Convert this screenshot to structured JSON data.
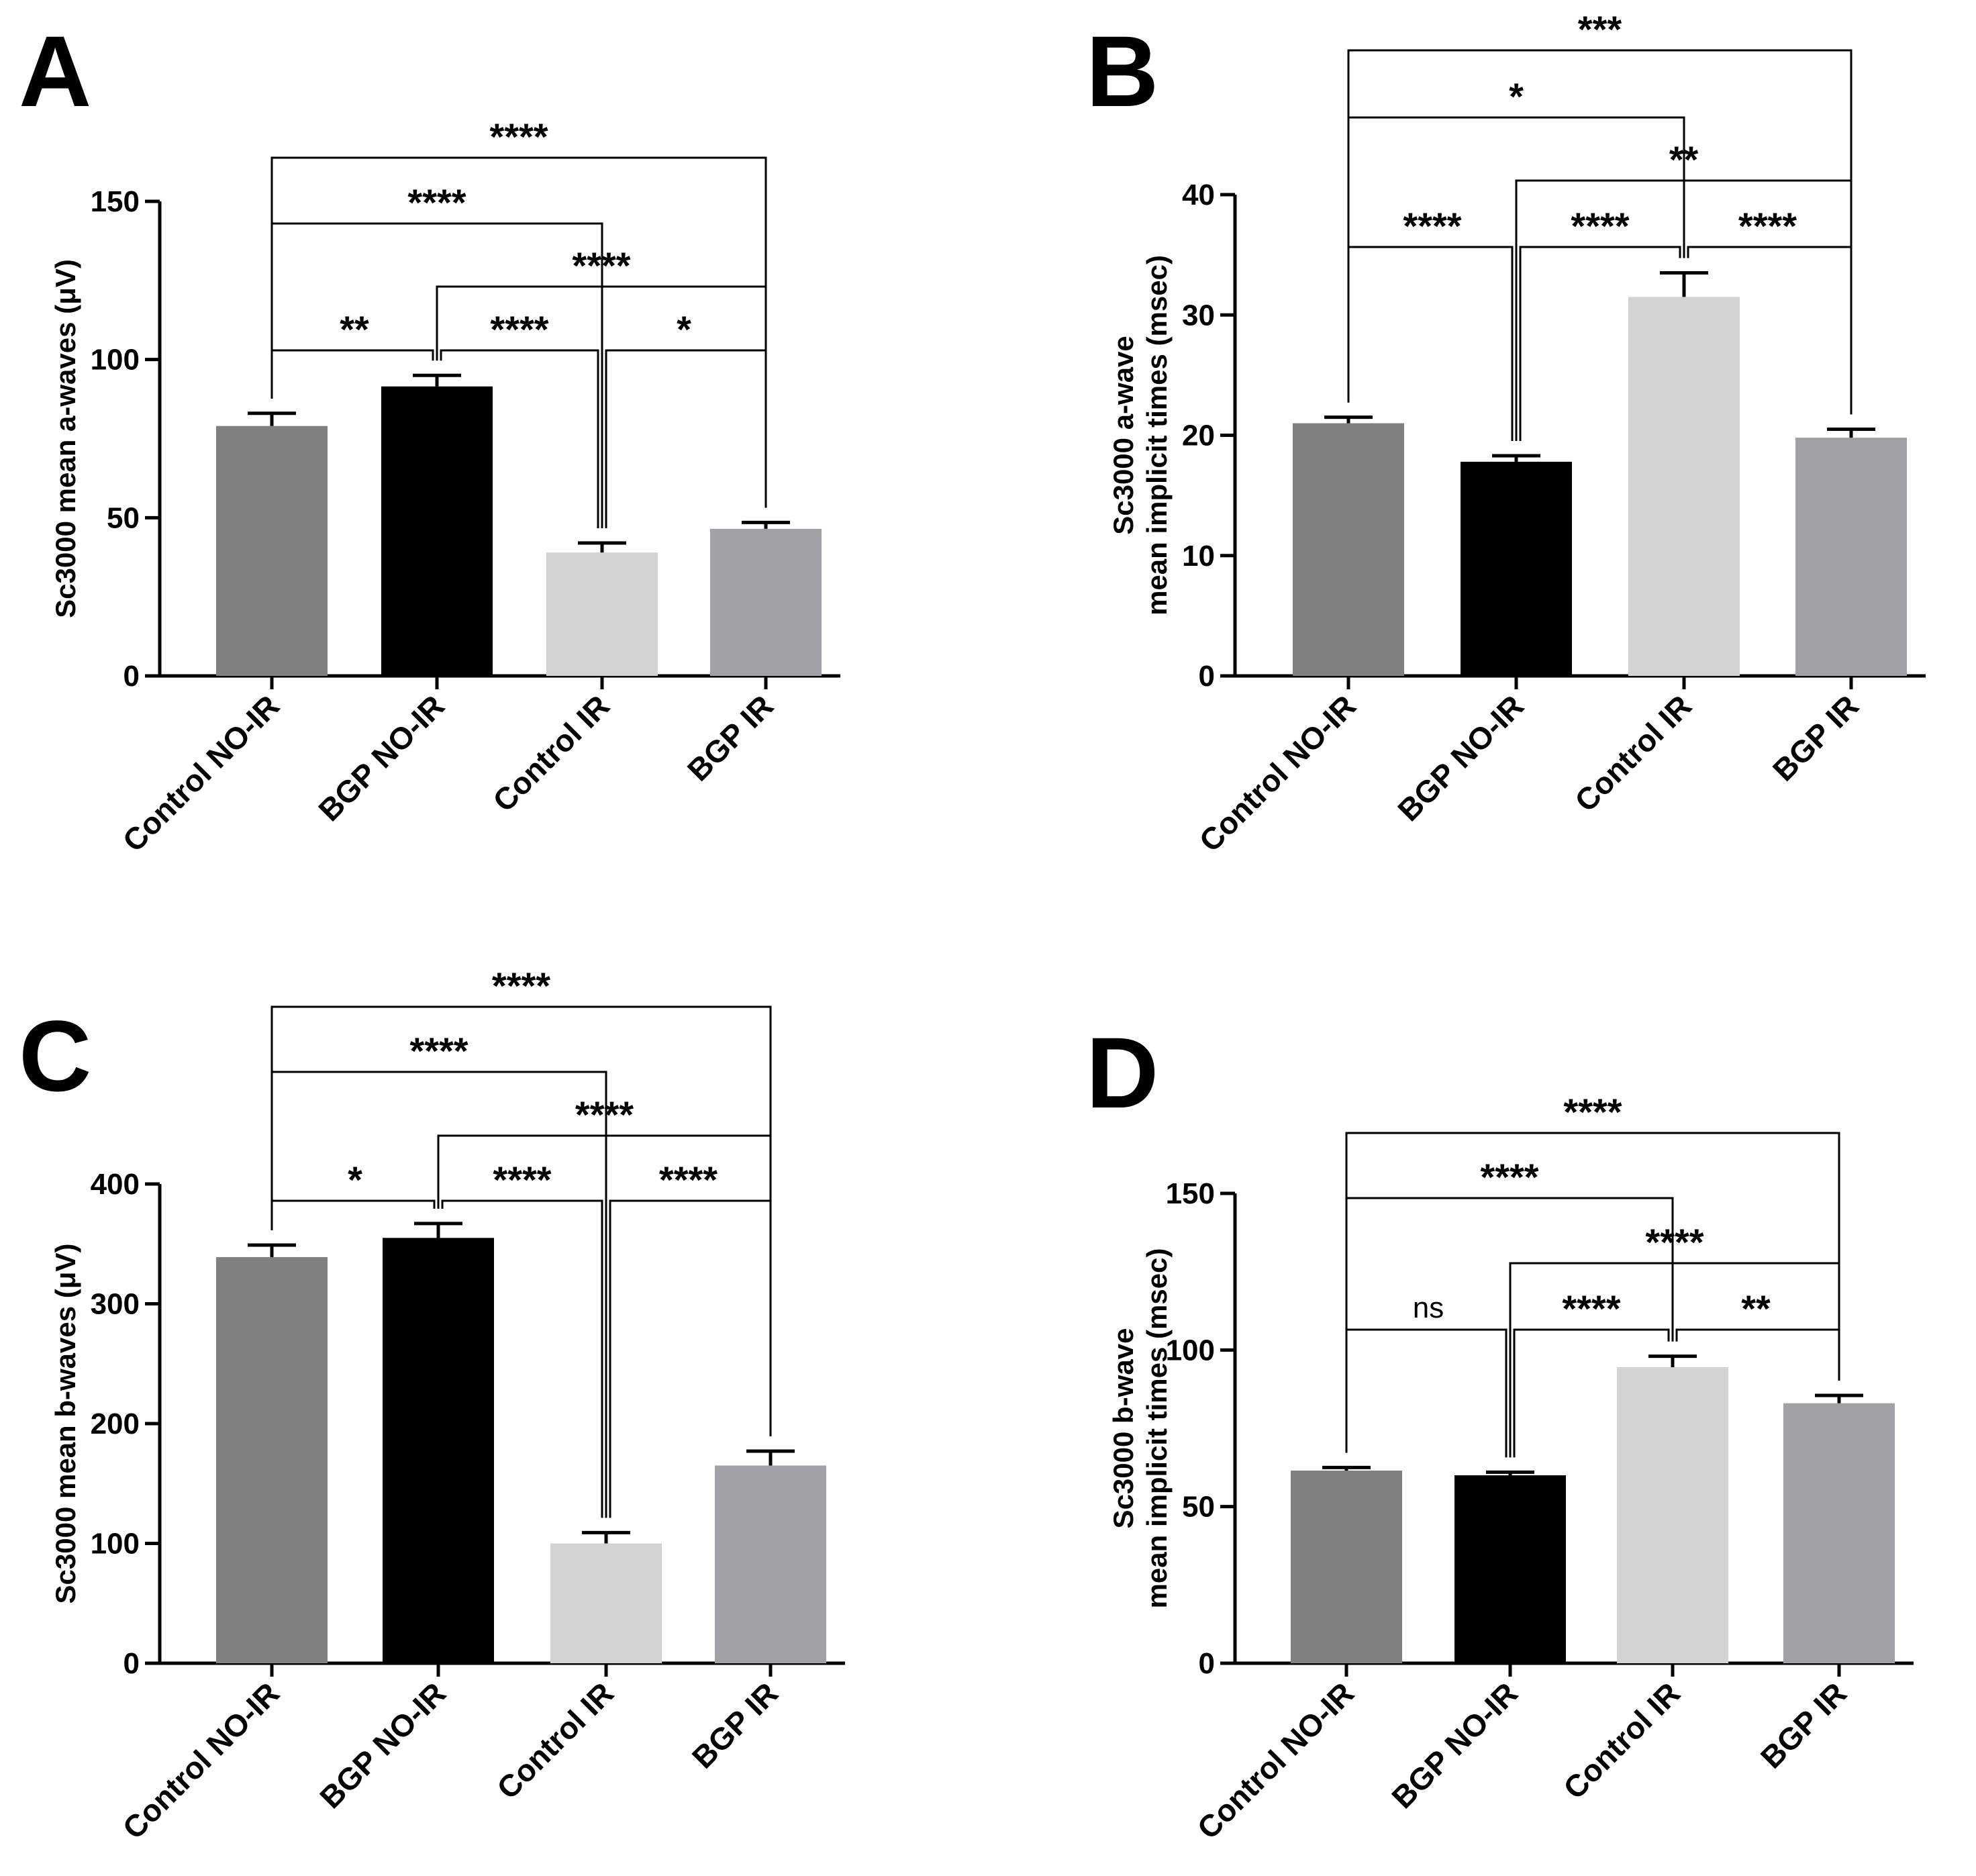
{
  "chart_data": [
    {
      "panel": "A",
      "type": "bar",
      "ylabel": "Sc3000 mean a-waves (μV)",
      "ylim": [
        0,
        150
      ],
      "yticks": [
        "0",
        "50",
        "100",
        "150"
      ],
      "categories": [
        "Control NO-IR",
        "BGP NO-IR",
        "Control IR",
        "BGP IR"
      ],
      "values": [
        79,
        91.5,
        39,
        46.5
      ],
      "errors": [
        4,
        3.5,
        3,
        2
      ],
      "colors": [
        "#808080",
        "#000000",
        "#d3d3d3",
        "#a2a2a6"
      ],
      "comparisons": [
        {
          "from": 0,
          "to": 3,
          "label": "****"
        },
        {
          "from": 0,
          "to": 2,
          "label": "****"
        },
        {
          "from": 1,
          "to": 3,
          "label": "****"
        },
        {
          "from": 0,
          "to": 1,
          "label": "**"
        },
        {
          "from": 1,
          "to": 2,
          "label": "****"
        },
        {
          "from": 2,
          "to": 3,
          "label": "*"
        }
      ]
    },
    {
      "panel": "B",
      "type": "bar",
      "ylabel": "Sc3000 a-wave mean implicit times (msec)",
      "ylabel_lines": [
        "Sc3000 a-wave",
        "mean implicit times (msec)"
      ],
      "ylim": [
        0,
        40
      ],
      "yticks": [
        "0",
        "10",
        "20",
        "30",
        "40"
      ],
      "categories": [
        "Control NO-IR",
        "BGP NO-IR",
        "Control IR",
        "BGP IR"
      ],
      "values": [
        21,
        17.8,
        31.5,
        19.8
      ],
      "errors": [
        0.5,
        0.5,
        2,
        0.7
      ],
      "colors": [
        "#808080",
        "#000000",
        "#d3d3d3",
        "#a2a2a6"
      ],
      "comparisons": [
        {
          "from": 0,
          "to": 3,
          "label": "***"
        },
        {
          "from": 0,
          "to": 2,
          "label": "*"
        },
        {
          "from": 1,
          "to": 3,
          "label": "**"
        },
        {
          "from": 0,
          "to": 1,
          "label": "****"
        },
        {
          "from": 1,
          "to": 2,
          "label": "****"
        },
        {
          "from": 2,
          "to": 3,
          "label": "****"
        }
      ]
    },
    {
      "panel": "C",
      "type": "bar",
      "ylabel": "Sc3000 mean b-waves (μV)",
      "ylim": [
        0,
        400
      ],
      "yticks": [
        "0",
        "100",
        "200",
        "300",
        "400"
      ],
      "categories": [
        "Control NO-IR",
        "BGP NO-IR",
        "Control IR",
        "BGP IR"
      ],
      "values": [
        339,
        355,
        100,
        165
      ],
      "errors": [
        10,
        12,
        9,
        12
      ],
      "colors": [
        "#808080",
        "#000000",
        "#d3d3d3",
        "#a2a2a6"
      ],
      "comparisons": [
        {
          "from": 0,
          "to": 3,
          "label": "****"
        },
        {
          "from": 0,
          "to": 2,
          "label": "****"
        },
        {
          "from": 1,
          "to": 3,
          "label": "****"
        },
        {
          "from": 0,
          "to": 1,
          "label": "*"
        },
        {
          "from": 1,
          "to": 2,
          "label": "****"
        },
        {
          "from": 2,
          "to": 3,
          "label": "****"
        }
      ]
    },
    {
      "panel": "D",
      "type": "bar",
      "ylabel": "Sc3000 b-wave mean implicit times (msec)",
      "ylabel_lines": [
        "Sc3000 b-wave",
        "mean implicit times (msec)"
      ],
      "ylim": [
        0,
        150
      ],
      "yticks": [
        "0",
        "50",
        "100",
        "150"
      ],
      "categories": [
        "Control NO-IR",
        "BGP NO-IR",
        "Control IR",
        "BGP IR"
      ],
      "values": [
        61.5,
        60,
        94.5,
        83
      ],
      "errors": [
        1,
        1,
        3.5,
        2.5
      ],
      "colors": [
        "#808080",
        "#000000",
        "#d3d3d3",
        "#a2a2a6"
      ],
      "comparisons": [
        {
          "from": 0,
          "to": 3,
          "label": "****"
        },
        {
          "from": 0,
          "to": 2,
          "label": "****"
        },
        {
          "from": 1,
          "to": 3,
          "label": "****"
        },
        {
          "from": 0,
          "to": 1,
          "label": "ns"
        },
        {
          "from": 1,
          "to": 2,
          "label": "****"
        },
        {
          "from": 2,
          "to": 3,
          "label": "**"
        }
      ]
    }
  ]
}
